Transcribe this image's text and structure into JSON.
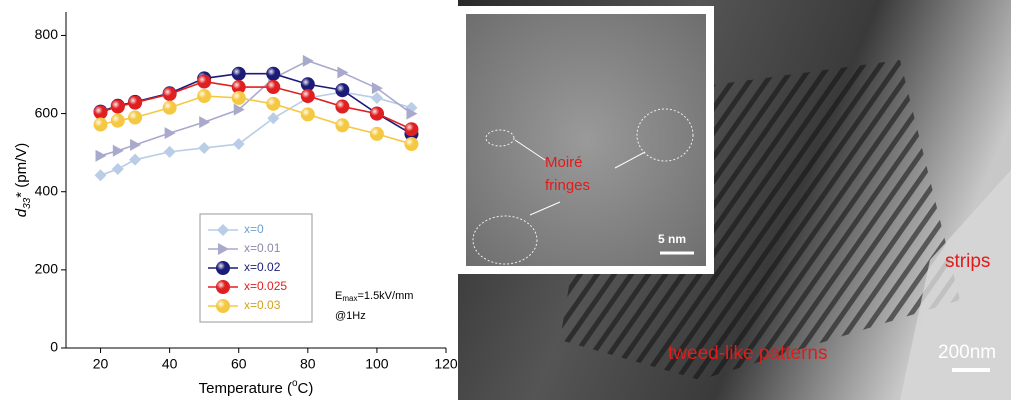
{
  "chart_data": {
    "type": "line",
    "y_label": {
      "main": "d",
      "sub": "33",
      "rest": "* (pm/V)"
    },
    "x_label": {
      "main": "Temperature (",
      "sup": "o",
      "rest": "C)"
    },
    "annotation": {
      "main": "E",
      "sub": "max",
      "rest": "=1.5kV/mm",
      "line2": "@1Hz"
    },
    "x": [
      20,
      25,
      30,
      40,
      50,
      60,
      70,
      80,
      90,
      100,
      110
    ],
    "series": [
      {
        "name": "x=0",
        "color": "#b9cde6",
        "text_color": "#6f9fd0",
        "marker": "diamond",
        "values": [
          442,
          458,
          482,
          502,
          512,
          522,
          588,
          640,
          655,
          640,
          615
        ]
      },
      {
        "name": "x=0.01",
        "color": "#a9a9cc",
        "text_color": "#8a8aa8",
        "marker": "triangle",
        "values": [
          492,
          505,
          520,
          550,
          578,
          610,
          690,
          735,
          705,
          665,
          600
        ]
      },
      {
        "name": "x=0.02",
        "color": "#1c1c78",
        "text_color": "#1c1c78",
        "marker": "circle",
        "values": [
          605,
          620,
          630,
          652,
          690,
          702,
          702,
          675,
          660,
          600,
          548
        ]
      },
      {
        "name": "x=0.025",
        "color": "#e02020",
        "text_color": "#e02020",
        "marker": "circle",
        "values": [
          603,
          618,
          628,
          650,
          682,
          668,
          668,
          645,
          618,
          600,
          560
        ]
      },
      {
        "name": "x=0.03",
        "color": "#f5c842",
        "text_color": "#d4a020",
        "marker": "circle",
        "values": [
          572,
          582,
          590,
          615,
          645,
          640,
          625,
          598,
          570,
          548,
          522
        ]
      }
    ],
    "xlim": [
      10,
      120
    ],
    "xticks": [
      20,
      40,
      60,
      80,
      100,
      120
    ],
    "ylim": [
      0,
      860
    ],
    "yticks": [
      0,
      200,
      400,
      600,
      800
    ],
    "grid": false,
    "legend": "bottom-center"
  },
  "micrograph": {
    "inset_label_1": "Moiré",
    "inset_label_2": "fringes",
    "inset_scale": "5 nm",
    "label_strips": "strips",
    "label_tweed": "tweed-like patterns",
    "scale": "200nm"
  }
}
